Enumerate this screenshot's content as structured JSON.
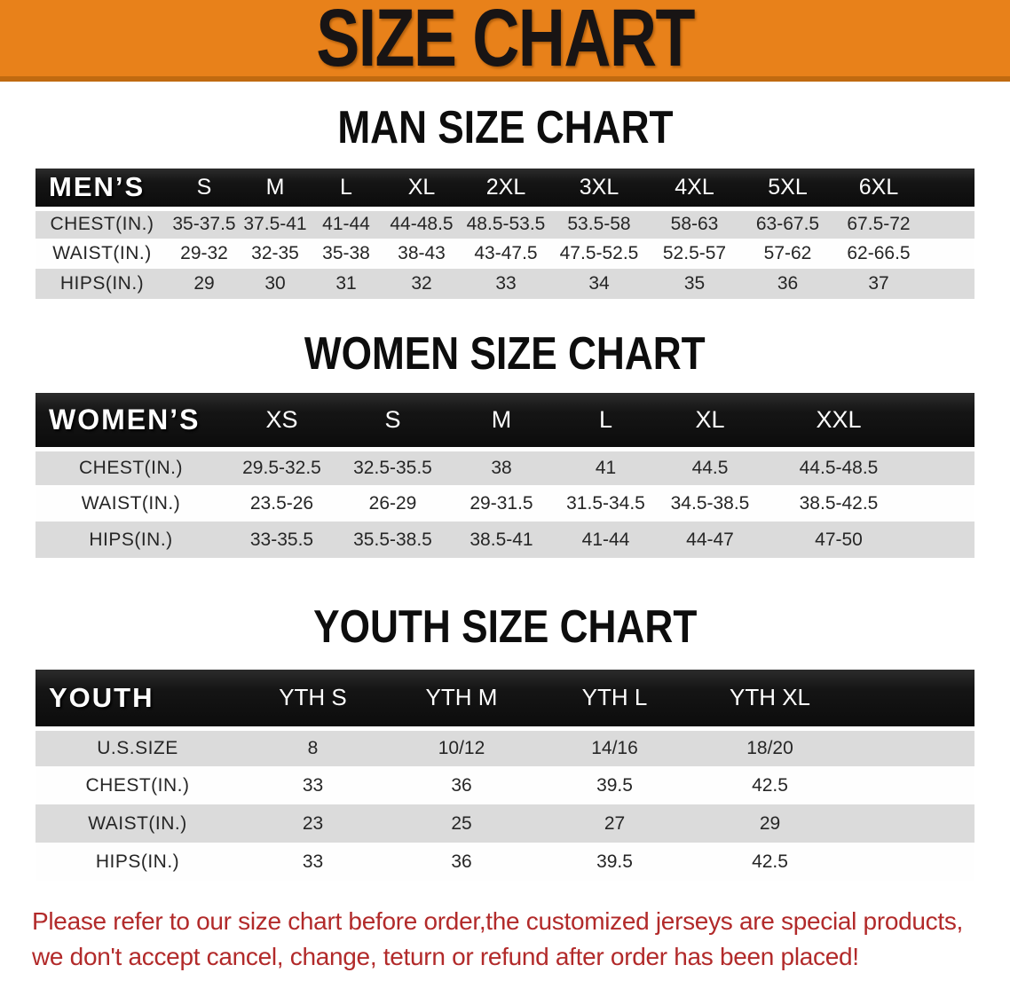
{
  "banner": {
    "title": "SIZE CHART"
  },
  "colors": {
    "banner_bg": "#E8811A",
    "banner_edge": "#C06A10",
    "header_bar": "#171717",
    "stripe_gray": "#DBDBDB",
    "text_dark": "#262626",
    "disclaimer_red": "#B22A2A"
  },
  "tables": [
    {
      "heading": "MAN SIZE CHART",
      "header_label": "MEN’S",
      "sizes": [
        "S",
        "M",
        "L",
        "XL",
        "2XL",
        "3XL",
        "4XL",
        "5XL",
        "6XL"
      ],
      "rows": [
        {
          "label": "CHEST(IN.)",
          "values": [
            "35-37.5",
            "37.5-41",
            "41-44",
            "44-48.5",
            "48.5-53.5",
            "53.5-58",
            "58-63",
            "63-67.5",
            "67.5-72"
          ]
        },
        {
          "label": "WAIST(IN.)",
          "values": [
            "29-32",
            "32-35",
            "35-38",
            "38-43",
            "43-47.5",
            "47.5-52.5",
            "52.5-57",
            "57-62",
            "62-66.5"
          ]
        },
        {
          "label": "HIPS(IN.)",
          "values": [
            "29",
            "30",
            "31",
            "32",
            "33",
            "34",
            "35",
            "36",
            "37"
          ]
        }
      ]
    },
    {
      "heading": "WOMEN SIZE CHART",
      "header_label": "WOMEN’S",
      "sizes": [
        "XS",
        "S",
        "M",
        "L",
        "XL",
        "XXL"
      ],
      "rows": [
        {
          "label": "CHEST(IN.)",
          "values": [
            "29.5-32.5",
            "32.5-35.5",
            "38",
            "41",
            "44.5",
            "44.5-48.5"
          ]
        },
        {
          "label": "WAIST(IN.)",
          "values": [
            "23.5-26",
            "26-29",
            "29-31.5",
            "31.5-34.5",
            "34.5-38.5",
            "38.5-42.5"
          ]
        },
        {
          "label": "HIPS(IN.)",
          "values": [
            "33-35.5",
            "35.5-38.5",
            "38.5-41",
            "41-44",
            "44-47",
            "47-50"
          ]
        }
      ]
    },
    {
      "heading": "YOUTH SIZE CHART",
      "header_label": "YOUTH",
      "sizes": [
        "YTH S",
        "YTH M",
        "YTH L",
        "YTH XL"
      ],
      "rows": [
        {
          "label": "U.S.SIZE",
          "values": [
            "8",
            "10/12",
            "14/16",
            "18/20"
          ]
        },
        {
          "label": "CHEST(IN.)",
          "values": [
            "33",
            "36",
            "39.5",
            "42.5"
          ]
        },
        {
          "label": "WAIST(IN.)",
          "values": [
            "23",
            "25",
            "27",
            "29"
          ]
        },
        {
          "label": "HIPS(IN.)",
          "values": [
            "33",
            "36",
            "39.5",
            "42.5"
          ]
        }
      ]
    }
  ],
  "disclaimer": {
    "line1": "Please refer to our size chart before order,the customized jerseys are special products,",
    "line2": "we don't accept cancel, change, teturn or refund after order has been placed!"
  }
}
